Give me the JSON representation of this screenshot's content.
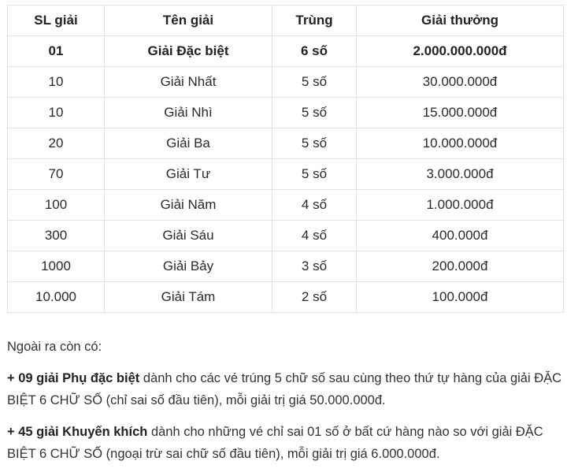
{
  "table": {
    "headers": [
      "SL giải",
      "Tên giải",
      "Trùng",
      "Giải thưởng"
    ],
    "rows": [
      [
        "01",
        "Giải Đặc biệt",
        "6 số",
        "2.000.000.000đ"
      ],
      [
        "10",
        "Giải Nhất",
        "5 số",
        "30.000.000đ"
      ],
      [
        "10",
        "Giải Nhì",
        "5 số",
        "15.000.000đ"
      ],
      [
        "20",
        "Giải Ba",
        "5 số",
        "10.000.000đ"
      ],
      [
        "70",
        "Giải Tư",
        "5 số",
        "3.000.000đ"
      ],
      [
        "100",
        "Giải Năm",
        "4 số",
        "1.000.000đ"
      ],
      [
        "300",
        "Giải Sáu",
        "4 số",
        "400.000đ"
      ],
      [
        "1000",
        "Giải Bảy",
        "3 số",
        "200.000đ"
      ],
      [
        "10.000",
        "Giải Tám",
        "2 số",
        "100.000đ"
      ]
    ]
  },
  "notes": {
    "intro": "Ngoài ra còn có:",
    "items": [
      {
        "bold": "+ 09 giải Phụ đặc biệt",
        "text": " dành cho các vé trúng 5 chữ số sau cùng theo thứ tự hàng của giải ĐẶC BIỆT 6 CHỮ SỐ (chỉ sai số đầu tiên), mỗi giải trị giá 50.000.000đ."
      },
      {
        "bold": "+ 45 giải Khuyến khích",
        "text": " dành cho những vé chỉ sai 01 số ở bất cứ hàng nào so với giải ĐẶC BIỆT 6 CHỮ SỐ (ngoại trừ sai chữ số đầu tiên), mỗi giải trị giá 6.000.000đ."
      }
    ]
  }
}
